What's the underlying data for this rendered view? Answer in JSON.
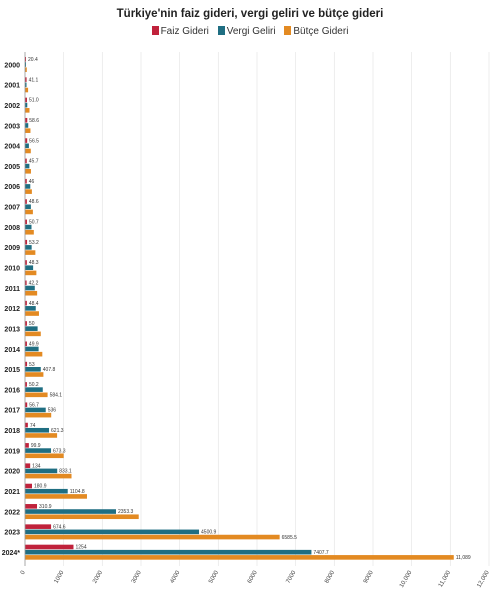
{
  "chart_data": {
    "type": "bar",
    "orientation": "horizontal",
    "title": "Türkiye'nin faiz gideri, vergi geliri ve bütçe gideri",
    "categories": [
      "2000",
      "2001",
      "2002",
      "2003",
      "2004",
      "2005",
      "2006",
      "2007",
      "2008",
      "2009",
      "2010",
      "2011",
      "2012",
      "2013",
      "2014",
      "2015",
      "2016",
      "2017",
      "2018",
      "2019",
      "2020",
      "2021",
      "2022",
      "2023",
      "2024*"
    ],
    "series": [
      {
        "name": "Faiz Gideri",
        "color": "#c0223b",
        "values": [
          20.4,
          41.1,
          51.0,
          58.6,
          56.5,
          45.7,
          46,
          48.6,
          50.7,
          53.2,
          48.3,
          42.2,
          48.4,
          50,
          49.9,
          53,
          50.2,
          56.7,
          74,
          99.9,
          134,
          180.9,
          310.9,
          674.6,
          1254
        ],
        "labels": [
          "20.4",
          "41.1",
          "51.0",
          "58.6",
          "56.5",
          "45.7",
          "46",
          "48.6",
          "50.7",
          "53.2",
          "48.3",
          "42.2",
          "48.4",
          "50",
          "49.9",
          "53",
          "50.2",
          "56.7",
          "74",
          "99.9",
          "134",
          "180.9",
          "310.9",
          "674.6",
          "1254"
        ]
      },
      {
        "name": "Vergi Geliri",
        "color": "#1f6e82",
        "values": [
          26,
          39,
          59,
          84,
          101,
          113,
          137,
          152,
          168,
          172,
          210,
          253,
          278,
          326,
          352,
          407.8,
          459.5,
          536,
          621.3,
          673.3,
          833.1,
          1104.8,
          2353.3,
          4500.9,
          7407.7
        ],
        "labels": [
          "",
          "",
          "",
          "",
          "",
          "",
          "",
          "",
          "",
          "",
          "",
          "",
          "",
          "",
          "",
          "407.8",
          "",
          "536",
          "621.3",
          "673.3",
          "833.1",
          "1104.8",
          "2353.3",
          "4500.9",
          "7407.7"
        ]
      },
      {
        "name": "Bütçe Gideri",
        "color": "#e38a22",
        "values": [
          46,
          80,
          116,
          141,
          150,
          154,
          178,
          204,
          228,
          268,
          294,
          314,
          361,
          408,
          448,
          476,
          584.1,
          678,
          830,
          1000,
          1203,
          1603,
          2941,
          6585.5,
          11089
        ],
        "labels": [
          "",
          "",
          "",
          "",
          "",
          "",
          "",
          "",
          "",
          "",
          "",
          "",
          "",
          "",
          "",
          "",
          "584.1",
          "",
          "",
          "",
          "",
          "",
          "",
          "6585.5",
          "11,089"
        ]
      }
    ],
    "xticks": [
      "0",
      "1000",
      "2000",
      "3000",
      "4000",
      "5000",
      "6000",
      "7000",
      "8000",
      "9000",
      "10,000",
      "11,000",
      "12,000"
    ],
    "xlim": [
      0,
      12000
    ],
    "grid": true,
    "legend_position": "top"
  }
}
